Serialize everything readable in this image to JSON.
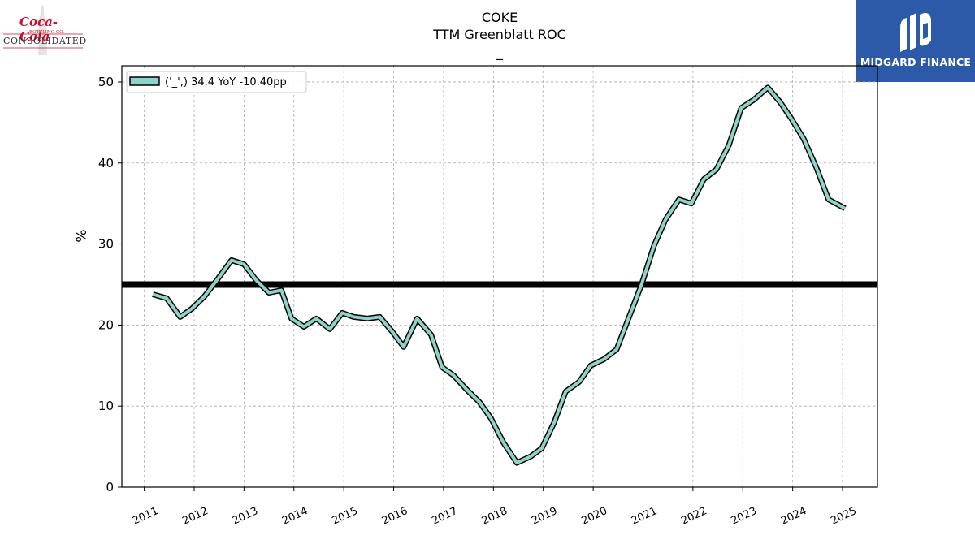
{
  "header": {
    "ticker": "COKE",
    "metric": "TTM Greenblatt ROC",
    "subtitle": "_"
  },
  "logos": {
    "left": {
      "script_text": "Coca-Cola",
      "small_text": "BOTTLING CO.",
      "company_text": "CONSOLIDATED",
      "color": "#c8102e"
    },
    "right": {
      "brand_text": "MIDGARD FINANCE",
      "background": "#2d5aa8"
    }
  },
  "chart_data": {
    "type": "line",
    "ylabel": "%",
    "xlabel": "",
    "ylim": [
      0,
      52
    ],
    "xlim": [
      2010.55,
      2025.7
    ],
    "yticks": [
      0,
      10,
      20,
      30,
      40,
      50
    ],
    "xticks": [
      2011,
      2012,
      2013,
      2014,
      2015,
      2016,
      2017,
      2018,
      2019,
      2020,
      2021,
      2022,
      2023,
      2024,
      2025
    ],
    "grid": true,
    "legend": {
      "placement": "top-left",
      "label": "('_',) 34.4 YoY -10.40pp"
    },
    "reference_line": {
      "y": 25,
      "color": "#000000"
    },
    "series": [
      {
        "label": "('_',) 34.4 YoY -10.40pp",
        "color": "#8dd3c7",
        "edge_color": "#000000",
        "x": [
          2011.17,
          2011.45,
          2011.72,
          2011.95,
          2012.2,
          2012.45,
          2012.75,
          2013.0,
          2013.25,
          2013.5,
          2013.75,
          2013.95,
          2014.2,
          2014.45,
          2014.72,
          2014.97,
          2015.2,
          2015.47,
          2015.72,
          2015.97,
          2016.2,
          2016.47,
          2016.75,
          2016.97,
          2017.2,
          2017.47,
          2017.72,
          2017.95,
          2018.2,
          2018.47,
          2018.75,
          2018.97,
          2019.22,
          2019.45,
          2019.72,
          2019.95,
          2020.22,
          2020.47,
          2020.72,
          2020.97,
          2021.22,
          2021.45,
          2021.72,
          2021.97,
          2022.22,
          2022.47,
          2022.72,
          2022.97,
          2023.22,
          2023.5,
          2023.75,
          2023.97,
          2024.22,
          2024.47,
          2024.72,
          2025.05
        ],
        "values": [
          23.8,
          23.3,
          21.0,
          22.0,
          23.5,
          25.5,
          28.0,
          27.5,
          25.5,
          24.0,
          24.3,
          20.8,
          19.8,
          20.8,
          19.5,
          21.5,
          21.0,
          20.8,
          21.0,
          19.2,
          17.3,
          20.8,
          18.8,
          14.8,
          13.8,
          12.0,
          10.5,
          8.5,
          5.5,
          3.0,
          3.8,
          4.8,
          8.0,
          11.8,
          13.0,
          15.0,
          15.8,
          17.0,
          21.0,
          25.0,
          29.8,
          33.0,
          35.5,
          35.0,
          38.0,
          39.2,
          42.2,
          46.8,
          47.8,
          49.3,
          47.5,
          45.5,
          43.0,
          39.5,
          35.5,
          34.4
        ]
      }
    ]
  }
}
